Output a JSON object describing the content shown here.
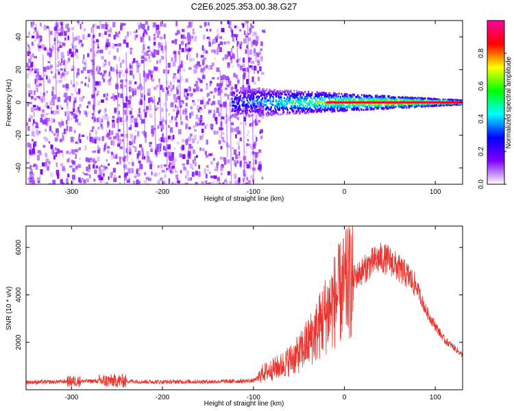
{
  "title": "C2E6.2025.353.00.38.G27",
  "chart_data": [
    {
      "type": "heatmap",
      "xlabel": "Height of straight line (km)",
      "ylabel": "Frequency (Hz)",
      "xlim": [
        -350,
        130
      ],
      "ylim": [
        -50,
        50
      ],
      "xticks": [
        -300,
        -200,
        -100,
        0,
        100
      ],
      "xtick_labels": [
        "-300",
        "-200",
        "-100",
        "0",
        "100"
      ],
      "yticks": [
        -40,
        -20,
        0,
        20,
        40
      ],
      "ytick_labels": [
        "-40",
        "-20",
        "0",
        "20",
        "40"
      ],
      "noise_region_x": [
        -350,
        -90
      ],
      "signal_region_x": [
        -125,
        130
      ],
      "signal_center_frequency_hz": 0,
      "colorbar": {
        "label": "Normalized spectral amplitude",
        "range": [
          0.0,
          1.0
        ],
        "ticks": [
          0.0,
          0.2,
          0.4,
          0.6,
          0.8
        ],
        "tick_labels": [
          "0.0",
          "0.2",
          "0.4",
          "0.6",
          "0.8"
        ],
        "colormap": [
          "#ffffff",
          "#7f00ff",
          "#0000ff",
          "#00ffff",
          "#00ff00",
          "#ffff00",
          "#ff0000",
          "#ff00a0"
        ]
      }
    },
    {
      "type": "line",
      "xlabel": "Height of straight line (km)",
      "ylabel": "SNR (10 * v/v)",
      "xlim": [
        -350,
        130
      ],
      "ylim": [
        0,
        6900
      ],
      "xticks": [
        -300,
        -200,
        -100,
        0,
        100
      ],
      "xtick_labels": [
        "-300",
        "-200",
        "-100",
        "0",
        "100"
      ],
      "yticks": [
        2000,
        4000,
        6000
      ],
      "ytick_labels": [
        "2000",
        "4000",
        "6000"
      ],
      "color": "#e8342e",
      "series": [
        {
          "name": "SNR",
          "x": [
            -350,
            -320,
            -300,
            -280,
            -250,
            -220,
            -200,
            -180,
            -150,
            -120,
            -100,
            -95,
            -90,
            -80,
            -70,
            -60,
            -50,
            -40,
            -30,
            -20,
            -10,
            0,
            10,
            20,
            30,
            40,
            50,
            60,
            70,
            80,
            90,
            100,
            110,
            120,
            130
          ],
          "y": [
            320,
            330,
            360,
            360,
            380,
            340,
            330,
            340,
            340,
            360,
            380,
            500,
            700,
            850,
            1000,
            1250,
            1500,
            2000,
            2500,
            3200,
            3800,
            4300,
            4700,
            5000,
            5350,
            5550,
            5450,
            5100,
            4800,
            4300,
            3300,
            2700,
            2100,
            1800,
            1450
          ]
        }
      ]
    }
  ]
}
